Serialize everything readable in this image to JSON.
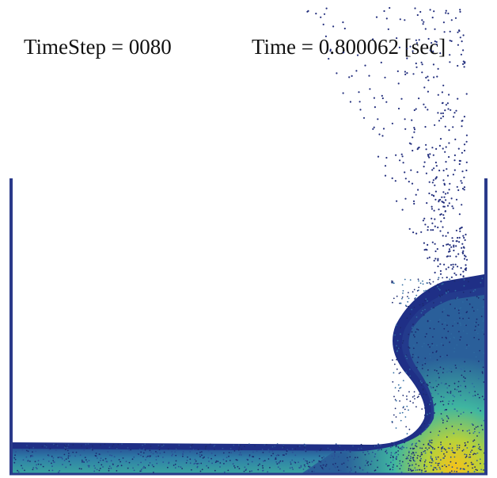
{
  "header": {
    "timestep": "TimeStep = 0080",
    "time": "Time = 0.800062 [sec]"
  }
}
